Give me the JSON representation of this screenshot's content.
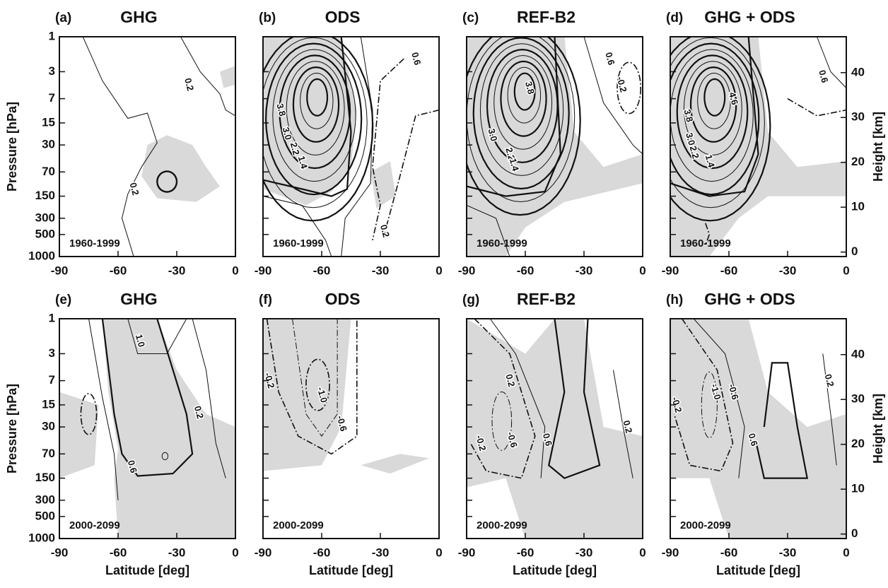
{
  "chart_data": [
    {
      "type": "contour",
      "panel_label": "(a)",
      "title": "GHG",
      "annotation": "1960-1999",
      "ylabel": "Pressure [hPa]",
      "xlim": [
        -90,
        0
      ],
      "xticks": [
        -90,
        -60,
        -30,
        0
      ],
      "ylim": [
        1000,
        1
      ],
      "y_scale": "log",
      "yticks": [
        1,
        3,
        7,
        15,
        30,
        70,
        150,
        300,
        500,
        1000
      ],
      "contour_labels": [
        0.2,
        0.2
      ]
    },
    {
      "type": "contour",
      "panel_label": "(b)",
      "title": "ODS",
      "annotation": "1960-1999",
      "xlim": [
        -90,
        0
      ],
      "xticks": [
        -90,
        -60,
        -30,
        0
      ],
      "ylim": [
        1000,
        1
      ],
      "y_scale": "log",
      "yticks": [
        1,
        3,
        7,
        15,
        30,
        70,
        150,
        300,
        500,
        1000
      ],
      "contour_labels": [
        0.6,
        3.8,
        {
          "value": 3,
          "label": "3.0"
        },
        2.2,
        1.4,
        0.2
      ]
    },
    {
      "type": "contour",
      "panel_label": "(c)",
      "title": "REF-B2",
      "annotation": "1960-1999",
      "xlim": [
        -90,
        0
      ],
      "xticks": [
        -90,
        -60,
        -30,
        0
      ],
      "ylim": [
        1000,
        1
      ],
      "y_scale": "log",
      "yticks": [
        1,
        3,
        7,
        15,
        30,
        70,
        150,
        300,
        500,
        1000
      ],
      "contour_labels": [
        0.6,
        -0.2,
        3.8,
        {
          "value": 3,
          "label": "3.0"
        },
        2.2,
        1.4
      ]
    },
    {
      "type": "contour",
      "panel_label": "(d)",
      "title": "GHG + ODS",
      "annotation": "1960-1999",
      "y2label": "Height [km]",
      "xlim": [
        -90,
        0
      ],
      "xticks": [
        -90,
        -60,
        -30,
        0
      ],
      "ylim": [
        1000,
        1
      ],
      "y_scale": "log",
      "yticks": [
        1,
        3,
        7,
        15,
        30,
        70,
        150,
        300,
        500,
        1000
      ],
      "y2lim": [
        -1,
        48
      ],
      "y2ticks": [
        0,
        10,
        20,
        30,
        40
      ],
      "contour_labels": [
        0.6,
        4.6,
        3.8,
        {
          "value": 3,
          "label": "3.0"
        },
        2.2,
        1.4
      ]
    },
    {
      "type": "contour",
      "panel_label": "(e)",
      "title": "GHG",
      "annotation": "2000-2099",
      "ylabel": "Pressure [hPa]",
      "xlabel": "Latitude [deg]",
      "xlim": [
        -90,
        0
      ],
      "xticks": [
        -90,
        -60,
        -30,
        0
      ],
      "ylim": [
        1000,
        1
      ],
      "y_scale": "log",
      "yticks": [
        1,
        3,
        7,
        15,
        30,
        70,
        150,
        300,
        500,
        1000
      ],
      "contour_labels": [
        {
          "value": 1,
          "label": "1.0"
        },
        0.2,
        0.6
      ]
    },
    {
      "type": "contour",
      "panel_label": "(f)",
      "title": "ODS",
      "annotation": "2000-2099",
      "xlabel": "Latitude [deg]",
      "xlim": [
        -90,
        0
      ],
      "xticks": [
        -90,
        -60,
        -30,
        0
      ],
      "ylim": [
        1000,
        1
      ],
      "y_scale": "log",
      "yticks": [
        1,
        3,
        7,
        15,
        30,
        70,
        150,
        300,
        500,
        1000
      ],
      "contour_labels": [
        -0.2,
        {
          "value": -1,
          "label": "-1.0"
        },
        -0.6
      ]
    },
    {
      "type": "contour",
      "panel_label": "(g)",
      "title": "REF-B2",
      "annotation": "2000-2099",
      "xlabel": "Latitude [deg]",
      "xlim": [
        -90,
        0
      ],
      "xticks": [
        -90,
        -60,
        -30,
        0
      ],
      "ylim": [
        1000,
        1
      ],
      "y_scale": "log",
      "yticks": [
        1,
        3,
        7,
        15,
        30,
        70,
        150,
        300,
        500,
        1000
      ],
      "contour_labels": [
        0.2,
        -0.2,
        -0.6,
        0.6,
        0.2
      ]
    },
    {
      "type": "contour",
      "panel_label": "(h)",
      "title": "GHG + ODS",
      "annotation": "2000-2099",
      "xlabel": "Latitude [deg]",
      "y2label": "Height [km]",
      "xlim": [
        -90,
        0
      ],
      "xticks": [
        -90,
        -60,
        -30,
        0
      ],
      "ylim": [
        1000,
        1
      ],
      "y_scale": "log",
      "yticks": [
        1,
        3,
        7,
        15,
        30,
        70,
        150,
        300,
        500,
        1000
      ],
      "y2lim": [
        -1,
        48
      ],
      "y2ticks": [
        0,
        10,
        20,
        30,
        40
      ],
      "contour_labels": [
        -0.2,
        {
          "value": -1,
          "label": "-1.0"
        },
        -0.6,
        0.2,
        0.6
      ]
    }
  ]
}
